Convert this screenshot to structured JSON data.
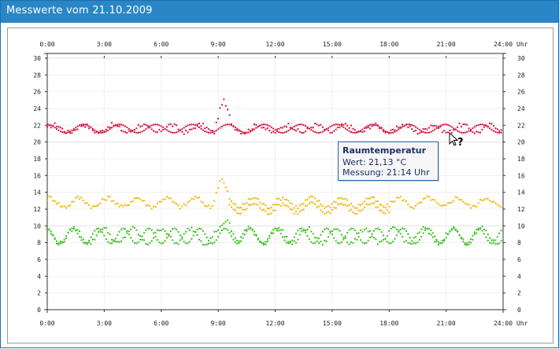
{
  "window": {
    "title": "Messwerte vom 21.10.2009"
  },
  "tooltip": {
    "title": "Raumtemperatur",
    "value_line": "Wert: 21,13 °C",
    "time_line": "Messung: 21:14 Uhr"
  },
  "cursor": {
    "icon": "help-cursor-icon"
  },
  "chart_data": {
    "type": "scatter",
    "x_ticks": [
      "0:00",
      "3:00",
      "6:00",
      "9:00",
      "12:00",
      "15:00",
      "18:00",
      "21:00",
      "24:00"
    ],
    "x_unit": "Uhr",
    "y_ticks": [
      0,
      2,
      4,
      6,
      8,
      10,
      12,
      14,
      16,
      18,
      20,
      22,
      24,
      26,
      28,
      30
    ],
    "ylim": [
      0,
      30
    ],
    "xlim_hours": [
      0,
      24
    ],
    "grid": true,
    "series": [
      {
        "color": "#d8123c",
        "base": 21.6,
        "amp": 0.45,
        "spike": {
          "at": 9.1,
          "peak": 25.0
        },
        "values_hours": []
      },
      {
        "color": "#f0b400",
        "base": 12.8,
        "amp": 0.55,
        "spike": {
          "at": 9.0,
          "peak": 15.3
        }
      },
      {
        "color": "#36c01a",
        "base": 8.8,
        "amp": 0.9,
        "spike": {
          "at": 9.4,
          "peak": 10.8
        }
      }
    ]
  }
}
